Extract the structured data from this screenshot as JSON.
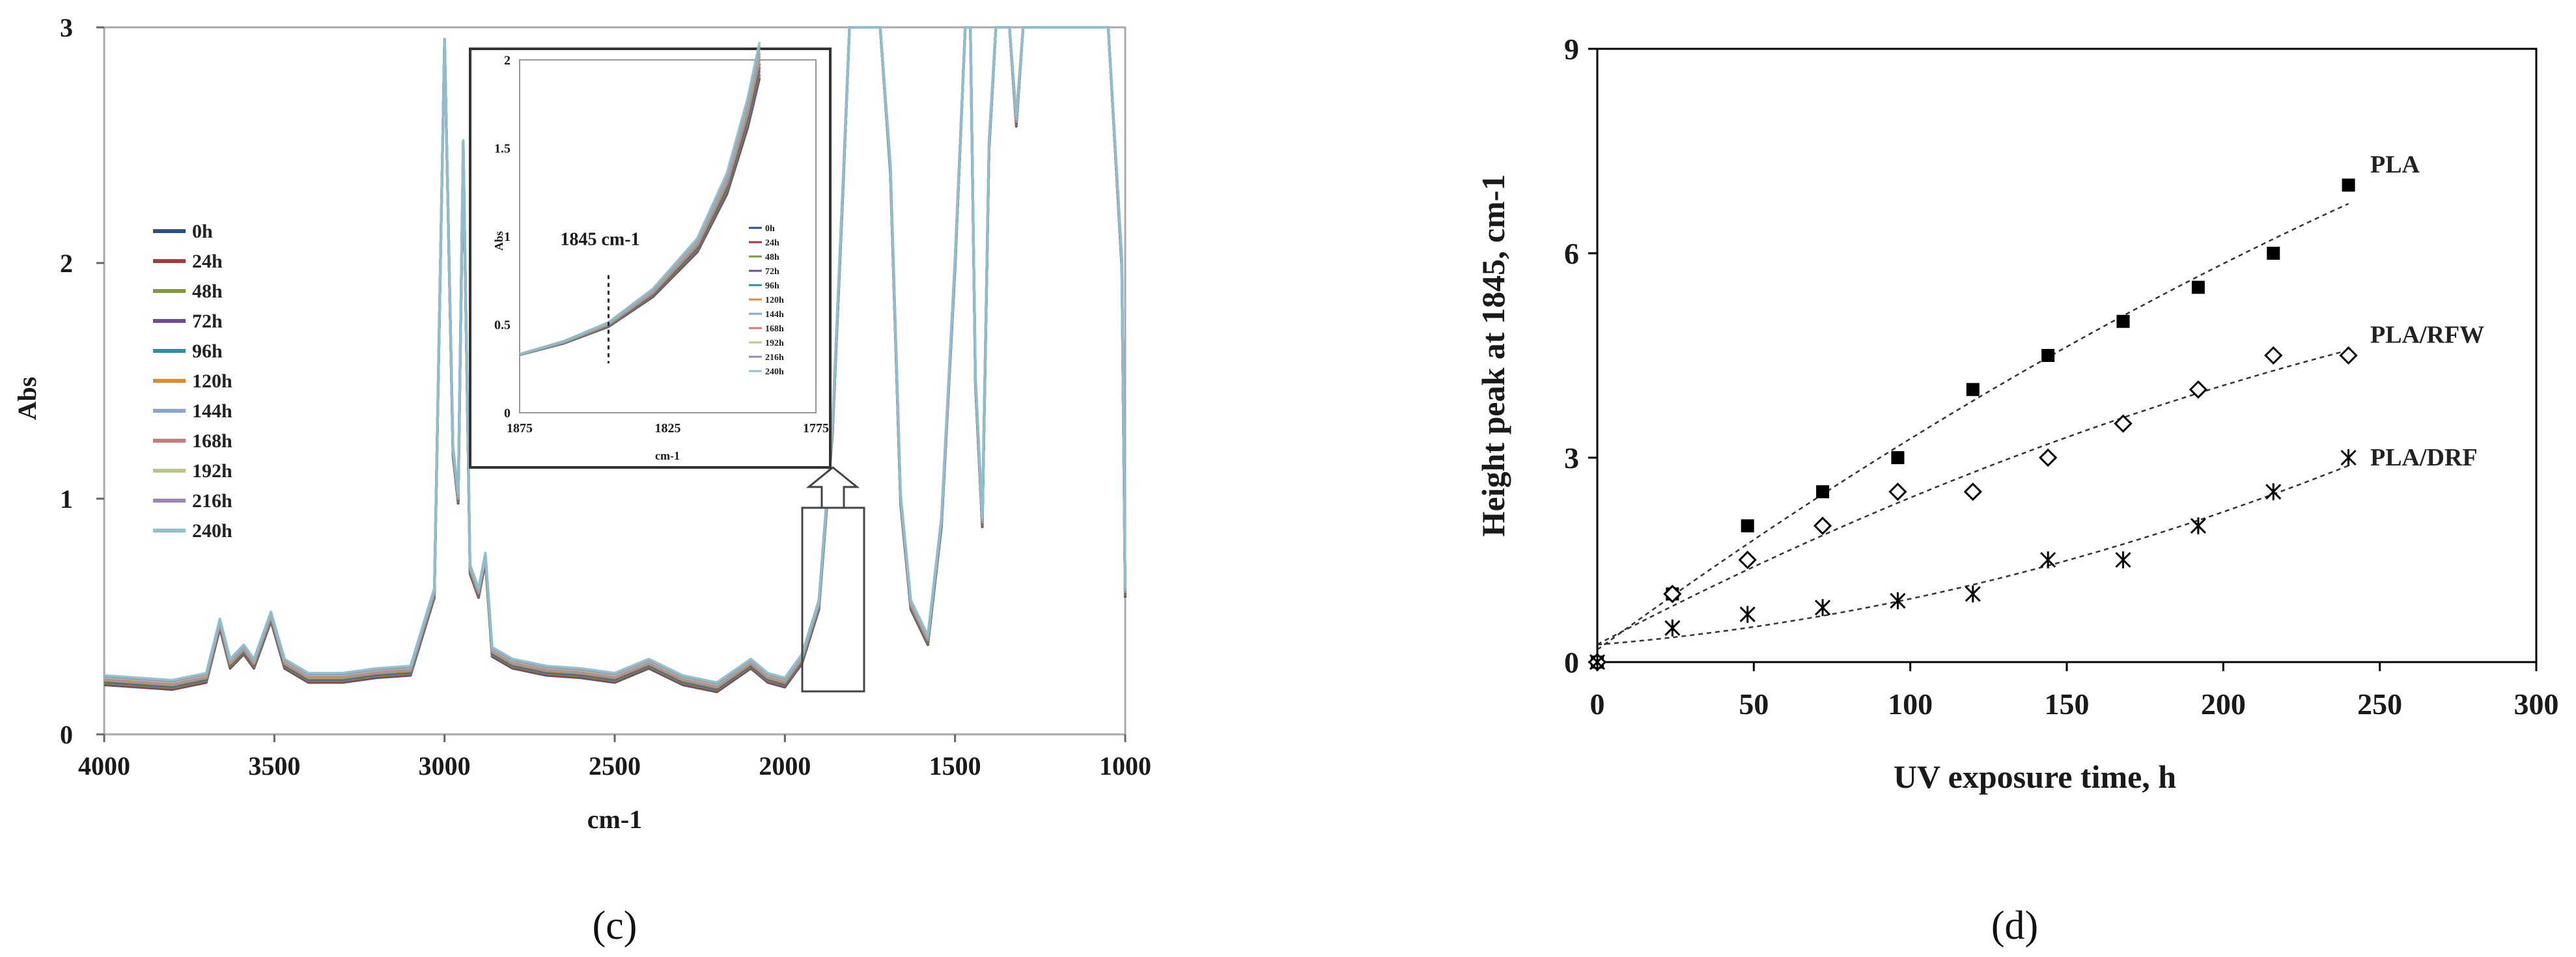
{
  "chart_data": [
    {
      "type": "line",
      "panel_label": "(c)",
      "xlabel": "cm-1",
      "ylabel": "Abs",
      "xlim": [
        4000,
        1000
      ],
      "ylim": [
        0,
        3
      ],
      "x_ticks": [
        "4000",
        "3500",
        "3000",
        "2500",
        "2000",
        "1500",
        "1000"
      ],
      "y_ticks": [
        "0",
        "1",
        "2",
        "3"
      ],
      "grid": false,
      "legend_position": "left",
      "series": [
        {
          "name": "0h",
          "color": "#2c4f8c"
        },
        {
          "name": "24h",
          "color": "#a53a3c"
        },
        {
          "name": "48h",
          "color": "#7f9a3a"
        },
        {
          "name": "72h",
          "color": "#6e4c8f"
        },
        {
          "name": "96h",
          "color": "#2f8fa6"
        },
        {
          "name": "120h",
          "color": "#e08a2c"
        },
        {
          "name": "144h",
          "color": "#8aa6cc"
        },
        {
          "name": "168h",
          "color": "#c97a7e"
        },
        {
          "name": "192h",
          "color": "#b7c98a"
        },
        {
          "name": "216h",
          "color": "#9b86b5"
        },
        {
          "name": "240h",
          "color": "#8ec2d0"
        }
      ],
      "spectrum_points": [
        [
          4000,
          0.23
        ],
        [
          3900,
          0.22
        ],
        [
          3800,
          0.21
        ],
        [
          3700,
          0.24
        ],
        [
          3660,
          0.47
        ],
        [
          3630,
          0.3
        ],
        [
          3590,
          0.36
        ],
        [
          3560,
          0.3
        ],
        [
          3510,
          0.5
        ],
        [
          3470,
          0.3
        ],
        [
          3400,
          0.24
        ],
        [
          3300,
          0.24
        ],
        [
          3200,
          0.26
        ],
        [
          3100,
          0.27
        ],
        [
          3030,
          0.6
        ],
        [
          3000,
          2.95
        ],
        [
          2975,
          1.2
        ],
        [
          2960,
          1.0
        ],
        [
          2945,
          2.5
        ],
        [
          2925,
          0.7
        ],
        [
          2900,
          0.6
        ],
        [
          2880,
          0.75
        ],
        [
          2860,
          0.35
        ],
        [
          2800,
          0.3
        ],
        [
          2700,
          0.27
        ],
        [
          2600,
          0.26
        ],
        [
          2500,
          0.24
        ],
        [
          2400,
          0.3
        ],
        [
          2300,
          0.23
        ],
        [
          2200,
          0.2
        ],
        [
          2100,
          0.3
        ],
        [
          2050,
          0.24
        ],
        [
          2000,
          0.22
        ],
        [
          1950,
          0.32
        ],
        [
          1900,
          0.55
        ],
        [
          1860,
          1.3
        ],
        [
          1830,
          2.3
        ],
        [
          1810,
          3.0
        ],
        [
          1780,
          3.0
        ],
        [
          1750,
          3.0
        ],
        [
          1720,
          3.0
        ],
        [
          1690,
          2.4
        ],
        [
          1660,
          1.0
        ],
        [
          1630,
          0.55
        ],
        [
          1580,
          0.4
        ],
        [
          1540,
          0.9
        ],
        [
          1500,
          2.0
        ],
        [
          1470,
          3.0
        ],
        [
          1455,
          3.0
        ],
        [
          1440,
          1.5
        ],
        [
          1420,
          0.9
        ],
        [
          1400,
          2.5
        ],
        [
          1380,
          3.0
        ],
        [
          1340,
          3.0
        ],
        [
          1320,
          2.6
        ],
        [
          1300,
          3.0
        ],
        [
          1270,
          3.0
        ],
        [
          1200,
          3.0
        ],
        [
          1100,
          3.0
        ],
        [
          1050,
          3.0
        ],
        [
          1010,
          2.0
        ],
        [
          1000,
          0.6
        ]
      ],
      "inset": {
        "xlim": [
          1875,
          1775
        ],
        "ylim": [
          0,
          2
        ],
        "x_ticks": [
          "1875",
          "1825",
          "1775"
        ],
        "y_ticks": [
          "0",
          "0.5",
          "1",
          "1.5",
          "2"
        ],
        "xlabel": "cm-1",
        "ylabel": "Abs",
        "annotation": "1845 cm-1",
        "annotation_x": 1845,
        "curve_points": [
          [
            1875,
            0.33
          ],
          [
            1860,
            0.4
          ],
          [
            1845,
            0.5
          ],
          [
            1830,
            0.68
          ],
          [
            1815,
            0.95
          ],
          [
            1805,
            1.3
          ],
          [
            1798,
            1.7
          ],
          [
            1794,
            2.0
          ]
        ]
      }
    },
    {
      "type": "scatter",
      "panel_label": "(d)",
      "xlabel": "UV exposure time, h",
      "ylabel": "Height peak at 1845, cm-1",
      "xlim": [
        0,
        300
      ],
      "ylim": [
        0,
        9
      ],
      "x_ticks": [
        "0",
        "50",
        "100",
        "150",
        "200",
        "250",
        "300"
      ],
      "y_ticks": [
        "0",
        "3",
        "6",
        "9"
      ],
      "grid": false,
      "series": [
        {
          "name": "PLA",
          "marker": "filled-square",
          "trend": "dashed",
          "x": [
            0,
            24,
            48,
            72,
            96,
            120,
            144,
            168,
            192,
            216,
            240
          ],
          "y": [
            0,
            1.0,
            2.0,
            2.5,
            3.0,
            4.0,
            4.5,
            5.0,
            5.5,
            6.0,
            7.0
          ]
        },
        {
          "name": "PLA/RFW",
          "marker": "open-diamond",
          "trend": "dashed",
          "x": [
            0,
            24,
            48,
            72,
            96,
            120,
            144,
            168,
            192,
            216,
            240
          ],
          "y": [
            0,
            1.0,
            1.5,
            2.0,
            2.5,
            2.5,
            3.0,
            3.5,
            4.0,
            4.5,
            4.5
          ]
        },
        {
          "name": "PLA/DRF",
          "marker": "asterisk",
          "trend": "dashed",
          "x": [
            0,
            24,
            48,
            72,
            96,
            120,
            144,
            168,
            192,
            216,
            240
          ],
          "y": [
            0,
            0.5,
            0.7,
            0.8,
            0.9,
            1.0,
            1.5,
            1.5,
            2.0,
            2.5,
            3.0
          ]
        }
      ]
    }
  ]
}
